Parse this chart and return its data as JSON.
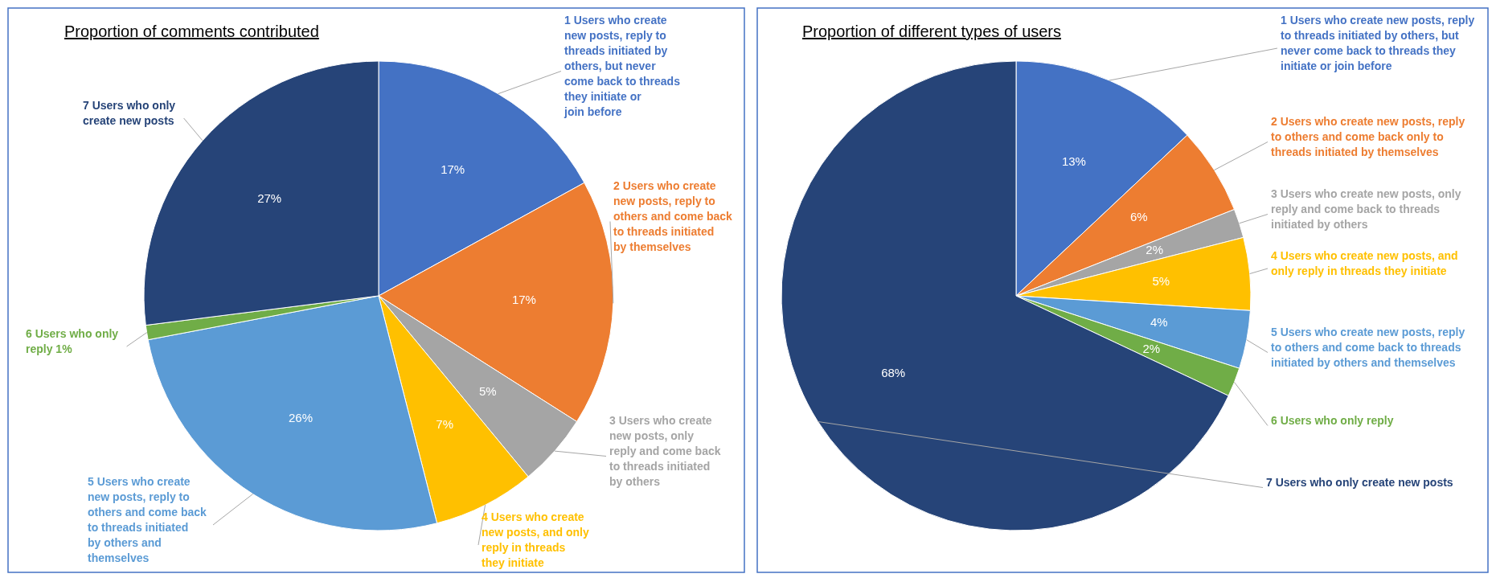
{
  "chart_data": [
    {
      "type": "pie",
      "title": "Proportion of comments contributed",
      "categories": [
        "1 Users who create new posts, reply to threads initiated by others, but never come back to threads they initiate or join before",
        "2 Users who create new posts, reply to others and come back to threads initiated by themselves",
        "3 Users who create new posts, only reply and come back to threads initiated by others",
        "4 Users who create new posts, and only reply in threads they initiate",
        "5 Users who create new posts, reply to others and come back to threads initiated by others and themselves",
        "6 Users who only reply 1%",
        "7 Users who only create new posts"
      ],
      "values": [
        17,
        17,
        5,
        7,
        26,
        1,
        27
      ],
      "value_labels": [
        "17%",
        "17%",
        "5%",
        "7%",
        "26%",
        null,
        "27%"
      ],
      "colors": [
        "#4472c4",
        "#ed7d31",
        "#a5a5a5",
        "#ffc000",
        "#5b9bd5",
        "#70ad47",
        "#264478"
      ]
    },
    {
      "type": "pie",
      "title": "Proportion of different types of users",
      "categories": [
        "1 Users who create new posts, reply to threads initiated by others, but never come back to threads they initiate or join before",
        "2 Users who create new posts, reply to others and come back only to threads initiated by themselves",
        "3 Users who create new posts, only reply and come back to threads initiated by others",
        "4 Users who create new posts, and only reply in threads they initiate",
        "5 Users who create new posts, reply to others and come back to threads initiated by others and themselves",
        "6 Users who only reply",
        "7 Users who only create new posts"
      ],
      "values": [
        13,
        6,
        2,
        5,
        4,
        2,
        68
      ],
      "value_labels": [
        "13%",
        "6%",
        "2%",
        "5%",
        "4%",
        "2%",
        "68%"
      ],
      "colors": [
        "#4472c4",
        "#ed7d31",
        "#a5a5a5",
        "#ffc000",
        "#5b9bd5",
        "#70ad47",
        "#264478"
      ]
    }
  ]
}
